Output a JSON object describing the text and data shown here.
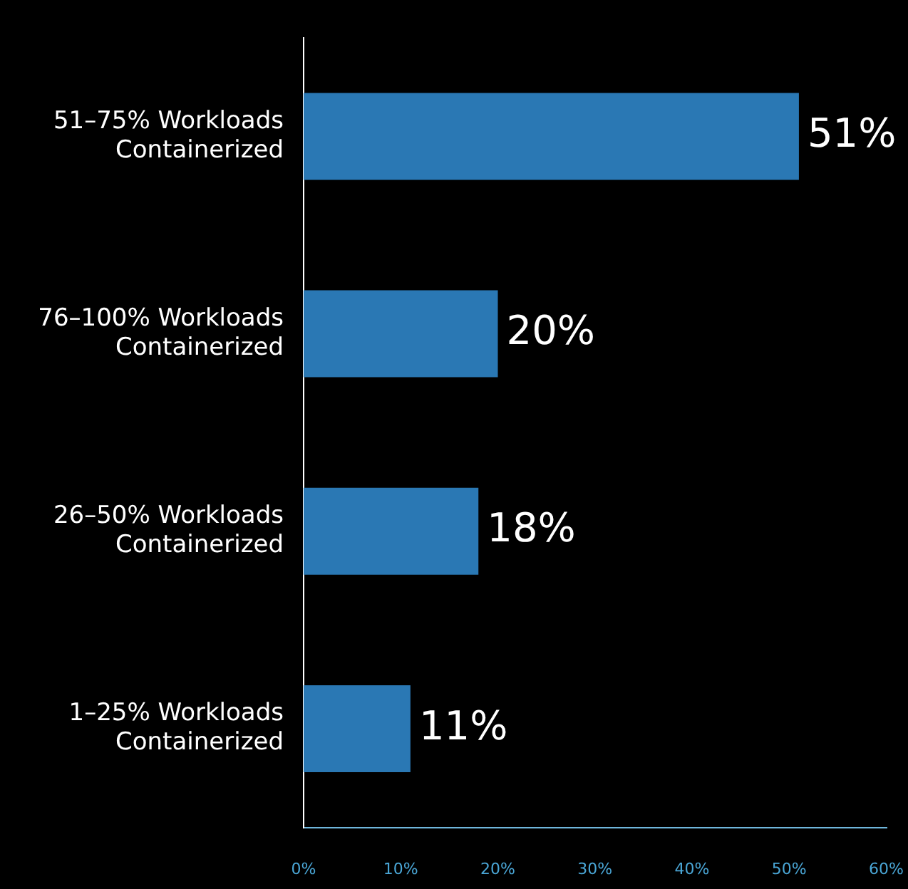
{
  "chart_data": {
    "type": "bar",
    "orientation": "horizontal",
    "categories": [
      "51–75% Workloads Containerized",
      "76–100% Workloads Containerized",
      "26–50% Workloads Containerized",
      "1–25% Workloads Containerized"
    ],
    "values": [
      51,
      20,
      18,
      11
    ],
    "color": "#2a78b4",
    "value_labels": [
      "51%",
      "20%",
      "18%",
      "11%"
    ],
    "xlim": [
      0,
      60
    ],
    "xticks": [
      {
        "value": 0,
        "label": "0%"
      },
      {
        "value": 10,
        "label": "10%"
      },
      {
        "value": 20,
        "label": "20%"
      },
      {
        "value": 30,
        "label": "30%"
      },
      {
        "value": 40,
        "label": "40%"
      },
      {
        "value": 50,
        "label": "50%"
      },
      {
        "value": 60,
        "label": "60%"
      }
    ],
    "grid": false,
    "legend": false
  }
}
